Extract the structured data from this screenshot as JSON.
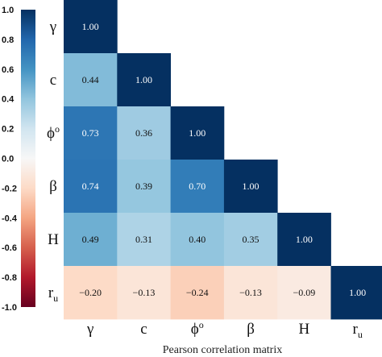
{
  "chart_data": {
    "type": "heatmap",
    "title": "",
    "xlabel": "Pearson correlation matrix",
    "ylabel": "",
    "row_labels": [
      {
        "main": "γ",
        "sub": ""
      },
      {
        "main": "c",
        "sub": ""
      },
      {
        "main": "ϕ",
        "sub": "o"
      },
      {
        "main": "β",
        "sub": ""
      },
      {
        "main": "H",
        "sub": ""
      },
      {
        "main": "r",
        "sub": "u"
      }
    ],
    "col_labels": [
      {
        "main": "γ",
        "sub": ""
      },
      {
        "main": "c",
        "sub": ""
      },
      {
        "main": "ϕ",
        "sub": "o"
      },
      {
        "main": "β",
        "sub": ""
      },
      {
        "main": "H",
        "sub": ""
      },
      {
        "main": "r",
        "sub": "u"
      }
    ],
    "values": [
      [
        1.0
      ],
      [
        0.44,
        1.0
      ],
      [
        0.73,
        0.36,
        1.0
      ],
      [
        0.74,
        0.39,
        0.7,
        1.0
      ],
      [
        0.49,
        0.31,
        0.4,
        0.35,
        1.0
      ],
      [
        -0.2,
        -0.13,
        -0.24,
        -0.13,
        -0.09,
        1.0
      ]
    ],
    "cell_labels": [
      [
        "1.00"
      ],
      [
        "0.44",
        "1.00"
      ],
      [
        "0.73",
        "0.36",
        "1.00"
      ],
      [
        "0.74",
        "0.39",
        "0.70",
        "1.00"
      ],
      [
        "0.49",
        "0.31",
        "0.40",
        "0.35",
        "1.00"
      ],
      [
        "−0.20",
        "−0.13",
        "−0.24",
        "−0.13",
        "−0.09",
        "1.00"
      ]
    ],
    "colorbar": {
      "range": [
        -1.0,
        1.0
      ],
      "ticks": [
        "1.0",
        "0.8",
        "0.6",
        "0.4",
        "0.2",
        "0.0",
        "-0.2",
        "-0.4",
        "-0.6",
        "-0.8",
        "-1.0"
      ],
      "colormap": "RdBu"
    },
    "triangle": "lower",
    "grid": false
  }
}
